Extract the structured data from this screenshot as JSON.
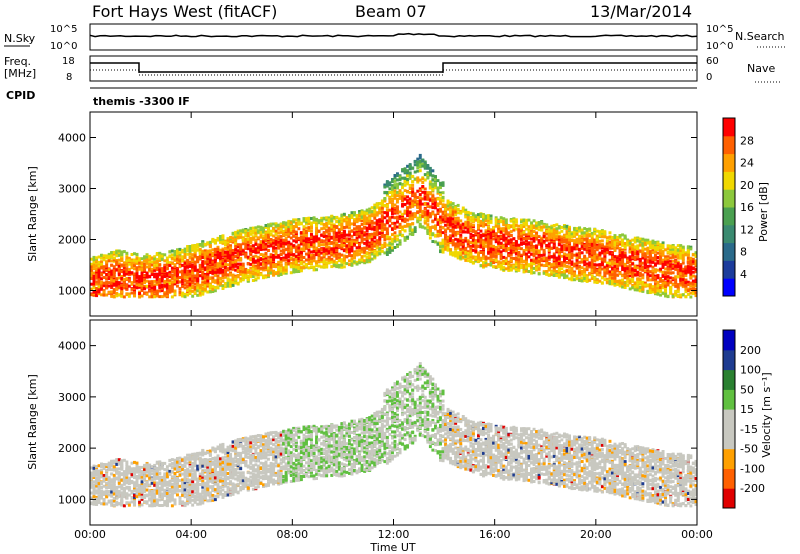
{
  "header": {
    "station": "Fort Hays West (fitACF)",
    "beam": "Beam 07",
    "date": "13/Mar/2014"
  },
  "top_panel": {
    "left_label": "N.Sky",
    "left_ticks": [
      "10^5",
      "10^0"
    ],
    "right_label": "N.Search",
    "right_ticks": [
      "10^5",
      "10^0"
    ]
  },
  "freq_panel": {
    "left_label_1": "Freq.",
    "left_label_2": "[MHz]",
    "left_ticks": [
      "18",
      "8"
    ],
    "right_label": "Nave",
    "right_ticks": [
      "60",
      "0"
    ]
  },
  "cpid_panel": {
    "label": "CPID",
    "program": "themis -3300 IF"
  },
  "colors": {
    "frame": "#000000",
    "power_scale": [
      "#0000ff",
      "#1c3c9c",
      "#2a6a8a",
      "#3a8a70",
      "#4aa050",
      "#8cc83c",
      "#f0d800",
      "#ffa000",
      "#ff6000",
      "#ff0000"
    ],
    "velocity_scale": [
      "#e00000",
      "#ff6000",
      "#ffa000",
      "#c8c8c0",
      "#c8c8c0",
      "#60c040",
      "#2a8030",
      "#1e3c90",
      "#0000c0"
    ]
  },
  "chart_data": [
    {
      "type": "heatmap",
      "panel": "power",
      "ylabel": "Slant Range [km]",
      "yticks": [
        "1000",
        "2000",
        "3000",
        "4000"
      ],
      "ylim": [
        500,
        4500
      ],
      "xlim": [
        0,
        24
      ],
      "colorbar_label": "Power [dB]",
      "colorbar_ticks": [
        "28",
        "24",
        "20",
        "16",
        "12",
        "8",
        "4"
      ],
      "colorbar_range": [
        0,
        30
      ],
      "echo_band": {
        "hours": [
          0,
          1,
          2,
          3,
          4,
          5,
          6,
          7,
          8,
          9,
          10,
          11,
          12,
          13,
          14,
          15,
          16,
          17,
          18,
          19,
          20,
          21,
          22,
          23,
          24
        ],
        "center_km": [
          1250,
          1400,
          1300,
          1350,
          1500,
          1650,
          1800,
          1900,
          2000,
          2050,
          2100,
          2200,
          2600,
          3000,
          2400,
          2150,
          2050,
          2000,
          1950,
          1850,
          1800,
          1700,
          1600,
          1500,
          1450
        ]
      }
    },
    {
      "type": "heatmap",
      "panel": "velocity",
      "ylabel": "Slant Range [km]",
      "yticks": [
        "1000",
        "2000",
        "3000",
        "4000"
      ],
      "ylim": [
        500,
        4500
      ],
      "xlim": [
        0,
        24
      ],
      "xticks": [
        "00:00",
        "04:00",
        "08:00",
        "12:00",
        "16:00",
        "20:00",
        "00:00"
      ],
      "xlabel": "Time UT",
      "colorbar_label": "Velocity [m s⁻¹]",
      "colorbar_ticks": [
        "200",
        "100",
        "50",
        "15",
        "-15",
        "-50",
        "-100",
        "-200"
      ],
      "colorbar_range": [
        -250,
        250
      ]
    }
  ]
}
